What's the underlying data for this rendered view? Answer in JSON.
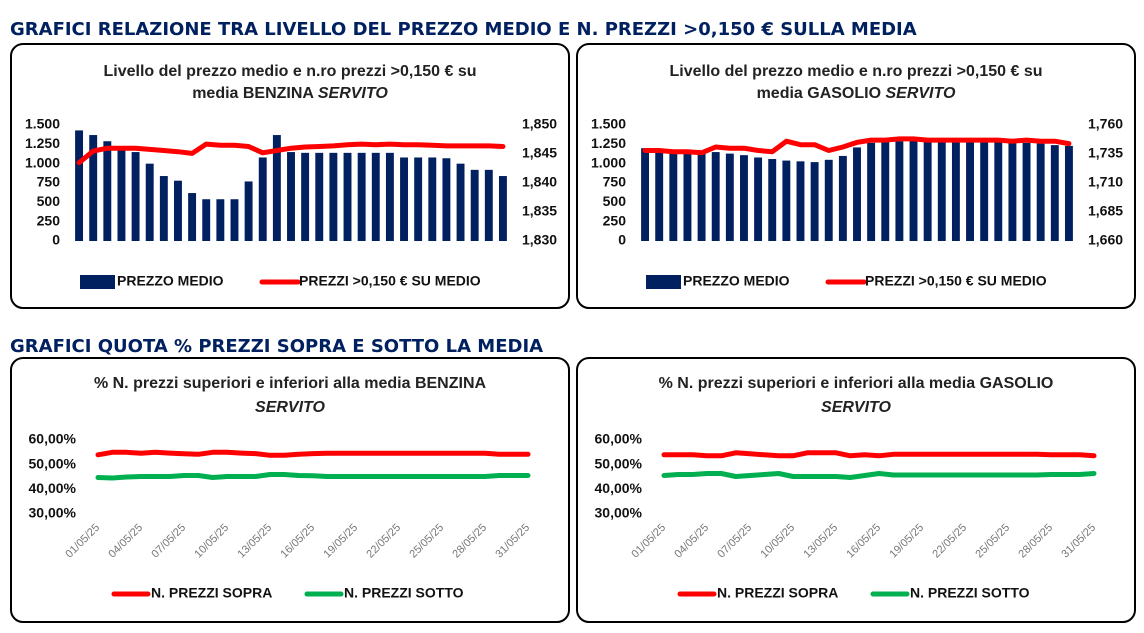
{
  "headings": [
    "GRAFICI RELAZIONE TRA LIVELLO DEL PREZZO MEDIO E N. PREZZI >0,150 € SULLA MEDIA",
    "GRAFICI QUOTA % PREZZI SOPRA E SOTTO LA MEDIA"
  ],
  "chart_data": [
    {
      "type": "combo",
      "title": [
        [
          {
            "text": "Livello del prezzo medio e n.ro prezzi >0,150 € su",
            "italic": false
          }
        ],
        [
          {
            "text": "media BENZINA ",
            "italic": false
          },
          {
            "text": "SERVITO",
            "italic": true
          }
        ]
      ],
      "ylim": [
        0,
        1500
      ],
      "yticks": [
        0,
        250,
        500,
        750,
        {
          "value": 1000,
          "label": "1.000"
        },
        {
          "value": 1250,
          "label": "1.250"
        },
        {
          "value": 1500,
          "label": "1.500"
        }
      ],
      "y2lim": [
        1830,
        1850
      ],
      "y2ticks": [
        {
          "value": 1830,
          "label": "1,830"
        },
        {
          "value": 1835,
          "label": "1,835"
        },
        {
          "value": 1840,
          "label": "1,840"
        },
        {
          "value": 1845,
          "label": "1,845"
        },
        {
          "value": 1850,
          "label": "1,850"
        }
      ],
      "series": [
        {
          "name": "PREZZO MEDIO",
          "color": "#002060",
          "values": [
            1430,
            1370,
            1290,
            1200,
            1150,
            1000,
            840,
            780,
            620,
            540,
            540,
            540,
            770,
            1080,
            1370,
            1150,
            1140,
            1140,
            1140,
            1140,
            1140,
            1140,
            1140,
            1080,
            1080,
            1080,
            1070,
            1000,
            920,
            920,
            840
          ]
        },
        {
          "name": "PREZZI >0,150 € SU MEDIO",
          "color": "#ff0000",
          "axis": "y2",
          "values": [
            1843.5,
            1845.5,
            1846,
            1846,
            1846,
            1845.8,
            1845.6,
            1845.4,
            1845.1,
            1846.7,
            1846.5,
            1846.5,
            1846.3,
            1845.2,
            1845.6,
            1846,
            1846.2,
            1846.3,
            1846.4,
            1846.6,
            1846.7,
            1846.6,
            1846.7,
            1846.6,
            1846.6,
            1846.5,
            1846.4,
            1846.4,
            1846.4,
            1846.4,
            1846.3
          ]
        }
      ]
    },
    {
      "type": "combo",
      "title": [
        [
          {
            "text": "Livello del prezzo medio e n.ro prezzi >0,150 € su",
            "italic": false
          }
        ],
        [
          {
            "text": "media GASOLIO ",
            "italic": false
          },
          {
            "text": "SERVITO",
            "italic": true
          }
        ]
      ],
      "ylim": [
        0,
        1500
      ],
      "yticks": [
        0,
        250,
        500,
        750,
        {
          "value": 1000,
          "label": "1.000"
        },
        {
          "value": 1250,
          "label": "1.250"
        },
        {
          "value": 1500,
          "label": "1.500"
        }
      ],
      "y2lim": [
        1660,
        1760
      ],
      "y2ticks": [
        {
          "value": 1660,
          "label": "1,660"
        },
        {
          "value": 1685,
          "label": "1,685"
        },
        {
          "value": 1710,
          "label": "1,710"
        },
        {
          "value": 1735,
          "label": "1,735"
        },
        {
          "value": 1760,
          "label": "1,760"
        }
      ],
      "series": [
        {
          "name": "PREZZO MEDIO",
          "color": "#002060",
          "values": [
            1200,
            1180,
            1170,
            1160,
            1150,
            1150,
            1130,
            1110,
            1080,
            1060,
            1040,
            1030,
            1020,
            1050,
            1100,
            1210,
            1270,
            1280,
            1290,
            1300,
            1300,
            1300,
            1300,
            1290,
            1290,
            1280,
            1280,
            1270,
            1260,
            1240,
            1230
          ]
        },
        {
          "name": "PREZZI >0,150 € SU MEDIO",
          "color": "#ff0000",
          "axis": "y2",
          "values": [
            1738,
            1738,
            1737,
            1737,
            1736,
            1741,
            1740,
            1740,
            1738,
            1737,
            1746,
            1743,
            1743,
            1738,
            1741,
            1745,
            1747,
            1747,
            1748,
            1748,
            1747,
            1747,
            1747,
            1747,
            1747,
            1747,
            1746,
            1747,
            1746,
            1746,
            1744
          ]
        }
      ]
    },
    {
      "type": "line",
      "title": [
        [
          {
            "text": "% N. prezzi superiori e inferiori alla media BENZINA",
            "italic": false
          }
        ],
        [
          {
            "text": "SERVITO",
            "italic": true
          }
        ]
      ],
      "categories": [
        "01/05/25",
        null,
        null,
        "04/05/25",
        null,
        null,
        "07/05/25",
        null,
        null,
        "10/05/25",
        null,
        null,
        "13/05/25",
        null,
        null,
        "16/05/25",
        null,
        null,
        "19/05/25",
        null,
        null,
        "22/05/25",
        null,
        null,
        "25/05/25",
        null,
        null,
        "28/05/25",
        null,
        null,
        "31/05/25"
      ],
      "ylim": [
        30,
        60
      ],
      "yticks": [
        {
          "value": 30,
          "label": "30,00%"
        },
        {
          "value": 40,
          "label": "40,00%"
        },
        {
          "value": 50,
          "label": "50,00%"
        },
        {
          "value": 60,
          "label": "60,00%"
        }
      ],
      "series": [
        {
          "name": "N. PREZZI SOPRA",
          "color": "#ff0000",
          "values": [
            54,
            55,
            55,
            54.6,
            55,
            54.7,
            54.4,
            54.2,
            55,
            55,
            54.7,
            54.5,
            53.8,
            53.8,
            54.2,
            54.5,
            54.6,
            54.6,
            54.6,
            54.6,
            54.6,
            54.6,
            54.6,
            54.6,
            54.6,
            54.6,
            54.6,
            54.6,
            54.2,
            54.2,
            54.2
          ]
        },
        {
          "name": "N. PREZZI SOTTO",
          "color": "#00b050",
          "values": [
            44.8,
            44.6,
            45,
            45.2,
            45.2,
            45.2,
            45.6,
            45.6,
            44.8,
            45.2,
            45.2,
            45.2,
            46,
            46,
            45.6,
            45.5,
            45.2,
            45.2,
            45.2,
            45.2,
            45.2,
            45.2,
            45.2,
            45.2,
            45.2,
            45.2,
            45.2,
            45.2,
            45.6,
            45.6,
            45.6
          ]
        }
      ]
    },
    {
      "type": "line",
      "title": [
        [
          {
            "text": "% N. prezzi superiori e inferiori alla media GASOLIO",
            "italic": false
          }
        ],
        [
          {
            "text": "SERVITO",
            "italic": true
          }
        ]
      ],
      "categories": [
        "01/05/25",
        null,
        null,
        "04/05/25",
        null,
        null,
        "07/05/25",
        null,
        null,
        "10/05/25",
        null,
        null,
        "13/05/25",
        null,
        null,
        "16/05/25",
        null,
        null,
        "19/05/25",
        null,
        null,
        "22/05/25",
        null,
        null,
        "25/05/25",
        null,
        null,
        "28/05/25",
        null,
        null,
        "31/05/25"
      ],
      "ylim": [
        30,
        60
      ],
      "yticks": [
        {
          "value": 30,
          "label": "30,00%"
        },
        {
          "value": 40,
          "label": "40,00%"
        },
        {
          "value": 50,
          "label": "50,00%"
        },
        {
          "value": 60,
          "label": "60,00%"
        }
      ],
      "series": [
        {
          "name": "N. PREZZI SOPRA",
          "color": "#ff0000",
          "values": [
            54,
            54,
            54,
            53.6,
            53.6,
            54.8,
            54.4,
            54,
            53.6,
            53.6,
            54.8,
            54.8,
            54.8,
            53.6,
            54,
            53.6,
            54.2,
            54.2,
            54.2,
            54.2,
            54.2,
            54.2,
            54.2,
            54.2,
            54.2,
            54.2,
            54.2,
            54,
            54,
            54,
            53.6
          ]
        },
        {
          "name": "N. PREZZI SOTTO",
          "color": "#00b050",
          "values": [
            45.6,
            46,
            46,
            46.4,
            46.4,
            45.2,
            45.6,
            46,
            46.4,
            45.2,
            45.2,
            45.2,
            45.2,
            44.8,
            45.6,
            46.4,
            45.8,
            45.8,
            45.8,
            45.8,
            45.8,
            45.8,
            45.8,
            45.8,
            45.8,
            45.8,
            45.8,
            46,
            46,
            46,
            46.4
          ]
        }
      ]
    }
  ]
}
